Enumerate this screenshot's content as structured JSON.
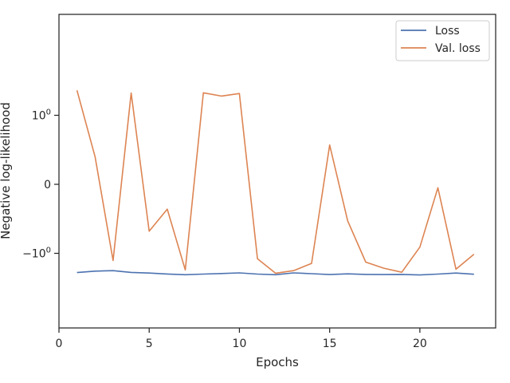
{
  "chart_data": {
    "type": "line",
    "xlabel": "Epochs",
    "ylabel": "Negative log-likelihood",
    "xlim": [
      0,
      24.2
    ],
    "yscale": "symlog",
    "x_ticks": [
      {
        "value": 0,
        "label": "0"
      },
      {
        "value": 5,
        "label": "5"
      },
      {
        "value": 10,
        "label": "10"
      },
      {
        "value": 15,
        "label": "15"
      },
      {
        "value": 20,
        "label": "20"
      }
    ],
    "y_ticks": [
      {
        "value": 1,
        "base": "10",
        "exp": "0"
      },
      {
        "value": 0,
        "base": "0",
        "exp": ""
      },
      {
        "value": -1,
        "base": "−10",
        "exp": "0"
      }
    ],
    "legend": {
      "placement": "top-right",
      "entries": [
        "Loss",
        "Val. loss"
      ]
    },
    "grid": false,
    "x": [
      1,
      2,
      3,
      4,
      5,
      6,
      7,
      8,
      9,
      10,
      11,
      12,
      13,
      14,
      15,
      16,
      17,
      18,
      19,
      20,
      21,
      22,
      23
    ],
    "series": [
      {
        "name": "Loss",
        "color": "#4c72b0",
        "values": [
          -1.9,
          -1.81,
          -1.78,
          -1.89,
          -1.93,
          -1.99,
          -2.04,
          -2.0,
          -1.96,
          -1.92,
          -2.0,
          -2.04,
          -1.92,
          -1.97,
          -2.03,
          -1.98,
          -2.02,
          -2.03,
          -2.02,
          -2.06,
          -2.0,
          -1.93,
          -2.01
        ]
      },
      {
        "name": "Val. loss",
        "color": "#dd8452",
        "values": [
          2.3,
          0.4,
          -1.27,
          2.1,
          -0.68,
          -0.36,
          -1.74,
          2.12,
          1.9,
          2.07,
          -1.2,
          -1.94,
          -1.78,
          -1.4,
          0.57,
          -0.53,
          -1.34,
          -1.64,
          -1.88,
          -0.91,
          -0.05,
          -1.7,
          -1.03
        ]
      }
    ]
  }
}
